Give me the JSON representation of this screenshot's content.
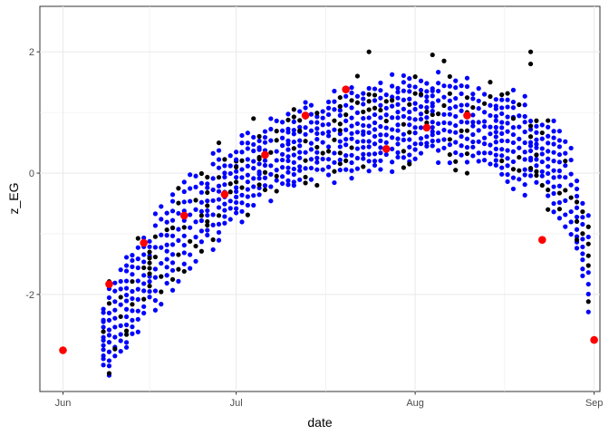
{
  "chart_data": {
    "type": "scatter",
    "title": "",
    "xlabel": "date",
    "ylabel": "z_EG",
    "x_ticks": [
      "Jun",
      "Jul",
      "Aug",
      "Sep"
    ],
    "x_tick_dates": [
      "2021-06-01",
      "2021-07-01",
      "2021-08-01",
      "2021-09-01"
    ],
    "xlim": [
      "2021-05-28",
      "2021-09-02"
    ],
    "y_ticks": [
      -2,
      0,
      2
    ],
    "ylim": [
      -3.6,
      2.75
    ],
    "grid": true,
    "legend": "none",
    "colors": {
      "blue": "#0000ff",
      "black": "#000000",
      "red": "#ff0000"
    },
    "trend": [
      [
        "2021-06-08",
        -2.7
      ],
      [
        "2021-06-15",
        -1.7
      ],
      [
        "2021-06-22",
        -0.9
      ],
      [
        "2021-06-29",
        -0.3
      ],
      [
        "2021-07-06",
        0.2
      ],
      [
        "2021-07-13",
        0.5
      ],
      [
        "2021-07-20",
        0.65
      ],
      [
        "2021-07-27",
        0.8
      ],
      [
        "2021-08-03",
        0.95
      ],
      [
        "2021-08-10",
        0.85
      ],
      [
        "2021-08-17",
        0.6
      ],
      [
        "2021-08-24",
        0.25
      ],
      [
        "2021-08-28",
        -0.3
      ],
      [
        "2021-08-31",
        -1.5
      ]
    ],
    "series": [
      {
        "color": "red",
        "points": [
          [
            "2021-06-01",
            -2.92
          ],
          [
            "2021-06-09",
            -1.83
          ],
          [
            "2021-06-15",
            -1.15
          ],
          [
            "2021-06-22",
            -0.7
          ],
          [
            "2021-06-29",
            -0.35
          ],
          [
            "2021-07-06",
            0.3
          ],
          [
            "2021-07-13",
            0.95
          ],
          [
            "2021-07-20",
            1.38
          ],
          [
            "2021-07-27",
            0.4
          ],
          [
            "2021-08-03",
            0.75
          ],
          [
            "2021-08-10",
            0.95
          ],
          [
            "2021-08-23",
            -1.1
          ],
          [
            "2021-09-01",
            -2.75
          ]
        ]
      },
      {
        "color": "black",
        "points": [
          [
            "2021-06-09",
            -3.3
          ],
          [
            "2021-06-10",
            -2.9
          ],
          [
            "2021-06-12",
            -2.6
          ],
          [
            "2021-06-16",
            -1.4
          ],
          [
            "2021-06-20",
            -0.9
          ],
          [
            "2021-06-25",
            -0.7
          ],
          [
            "2021-06-28",
            0.5
          ],
          [
            "2021-07-01",
            0.1
          ],
          [
            "2021-07-04",
            0.9
          ],
          [
            "2021-07-08",
            -0.05
          ],
          [
            "2021-07-12",
            0.7
          ],
          [
            "2021-07-15",
            -0.2
          ],
          [
            "2021-07-19",
            1.1
          ],
          [
            "2021-07-22",
            1.6
          ],
          [
            "2021-07-24",
            2.0
          ],
          [
            "2021-07-28",
            1.2
          ],
          [
            "2021-07-31",
            0.15
          ],
          [
            "2021-08-02",
            1.3
          ],
          [
            "2021-08-04",
            1.95
          ],
          [
            "2021-08-06",
            1.85
          ],
          [
            "2021-08-08",
            0.05
          ],
          [
            "2021-08-10",
            0.0
          ],
          [
            "2021-08-14",
            1.5
          ],
          [
            "2021-08-18",
            0.9
          ],
          [
            "2021-08-21",
            2.0
          ],
          [
            "2021-08-21",
            1.8
          ],
          [
            "2021-08-22",
            0.3
          ],
          [
            "2021-08-24",
            -0.6
          ],
          [
            "2021-08-27",
            0.2
          ],
          [
            "2021-08-29",
            -1.1
          ]
        ]
      }
    ]
  }
}
